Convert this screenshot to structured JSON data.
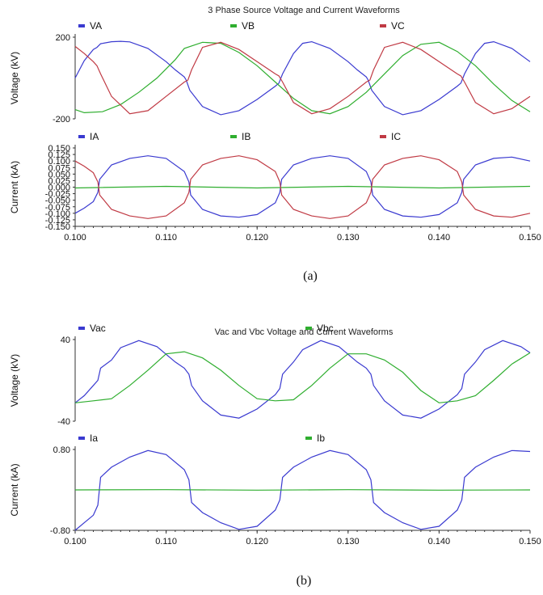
{
  "captions": [
    "(a)",
    "(b)"
  ],
  "colors": {
    "blue": "#3a3ad0",
    "green": "#2fae2f",
    "red": "#c03a44"
  },
  "chart_data": [
    {
      "type": "line",
      "title": "3 Phase Source Voltage and Current Waveforms",
      "ylabel": "Voltage (kV)",
      "ylim": [
        -200,
        200
      ],
      "yticks": [
        "200",
        "-200"
      ],
      "xlim": [
        0.1,
        0.15
      ],
      "legend": [
        "VA",
        "VB",
        "VC"
      ],
      "series": [
        {
          "name": "VA",
          "color": "blue",
          "x": [
            0.1,
            0.101,
            0.102,
            0.1024,
            0.1028,
            0.104,
            0.105,
            0.106,
            0.108,
            0.11,
            0.111,
            0.112,
            0.1122,
            0.1126,
            0.114,
            0.116,
            0.118,
            0.12,
            0.122,
            0.1224,
            0.1228,
            0.124,
            0.125,
            0.126,
            0.128,
            0.13,
            0.131,
            0.132,
            0.1322,
            0.1326,
            0.134,
            0.136,
            0.138,
            0.14,
            0.142,
            0.1424,
            0.1428,
            0.144,
            0.145,
            0.146,
            0.148,
            0.15
          ],
          "y": [
            0,
            85,
            140,
            150,
            168,
            178,
            180,
            177,
            145,
            80,
            40,
            5,
            -10,
            -60,
            -140,
            -180,
            -160,
            -105,
            -40,
            -25,
            20,
            120,
            170,
            178,
            145,
            80,
            40,
            5,
            -10,
            -60,
            -140,
            -180,
            -160,
            -105,
            -40,
            -25,
            20,
            120,
            170,
            178,
            145,
            80
          ]
        },
        {
          "name": "VB",
          "color": "green",
          "x": [
            0.1,
            0.101,
            0.103,
            0.105,
            0.107,
            0.109,
            0.111,
            0.112,
            0.114,
            0.116,
            0.118,
            0.12,
            0.122,
            0.124,
            0.126,
            0.128,
            0.13,
            0.132,
            0.134,
            0.136,
            0.138,
            0.14,
            0.142,
            0.144,
            0.146,
            0.148,
            0.15
          ],
          "y": [
            -155,
            -170,
            -165,
            -130,
            -70,
            0,
            90,
            145,
            175,
            170,
            125,
            60,
            -20,
            -100,
            -160,
            -175,
            -140,
            -70,
            20,
            110,
            165,
            175,
            130,
            60,
            -30,
            -110,
            -165
          ]
        },
        {
          "name": "VC",
          "color": "red",
          "x": [
            0.1,
            0.101,
            0.102,
            0.1024,
            0.1028,
            0.104,
            0.106,
            0.108,
            0.11,
            0.112,
            0.1124,
            0.1128,
            0.114,
            0.116,
            0.118,
            0.12,
            0.122,
            0.1224,
            0.1228,
            0.124,
            0.126,
            0.128,
            0.13,
            0.132,
            0.1324,
            0.1328,
            0.134,
            0.136,
            0.138,
            0.14,
            0.142,
            0.1424,
            0.1428,
            0.144,
            0.146,
            0.148,
            0.15
          ],
          "y": [
            155,
            120,
            80,
            60,
            20,
            -90,
            -175,
            -160,
            -90,
            -20,
            -10,
            40,
            150,
            175,
            140,
            80,
            20,
            10,
            -20,
            -120,
            -175,
            -150,
            -90,
            -20,
            -10,
            40,
            150,
            175,
            140,
            80,
            20,
            10,
            -20,
            -120,
            -175,
            -150,
            -90
          ]
        }
      ]
    },
    {
      "type": "line",
      "title": "",
      "ylabel": "Current (kA)",
      "ylim": [
        -0.15,
        0.15
      ],
      "yticks": [
        "0.150",
        "0.125",
        "0.100",
        "0.075",
        "0.050",
        "0.025",
        "0.000",
        "-0.025",
        "-0.050",
        "-0.075",
        "-0.100",
        "-0.125",
        "-0.150"
      ],
      "xlim": [
        0.1,
        0.15
      ],
      "xticks": [
        "0.100",
        "0.110",
        "0.120",
        "0.130",
        "0.140",
        "0.150"
      ],
      "legend": [
        "IA",
        "IB",
        "IC"
      ],
      "series": [
        {
          "name": "IA",
          "color": "blue",
          "x": [
            0.1,
            0.101,
            0.102,
            0.1025,
            0.1027,
            0.104,
            0.106,
            0.108,
            0.11,
            0.112,
            0.1125,
            0.1127,
            0.114,
            0.116,
            0.118,
            0.12,
            0.122,
            0.1225,
            0.1227,
            0.124,
            0.126,
            0.128,
            0.13,
            0.132,
            0.1325,
            0.1327,
            0.134,
            0.136,
            0.138,
            0.14,
            0.142,
            0.1425,
            0.1427,
            0.144,
            0.146,
            0.148,
            0.15
          ],
          "y": [
            -0.1,
            -0.08,
            -0.055,
            -0.02,
            0.03,
            0.085,
            0.11,
            0.12,
            0.11,
            0.06,
            0.02,
            -0.03,
            -0.085,
            -0.11,
            -0.115,
            -0.105,
            -0.06,
            -0.02,
            0.03,
            0.085,
            0.11,
            0.12,
            0.11,
            0.06,
            0.02,
            -0.03,
            -0.085,
            -0.11,
            -0.115,
            -0.105,
            -0.06,
            -0.02,
            0.03,
            0.085,
            0.11,
            0.115,
            0.1
          ]
        },
        {
          "name": "IB",
          "color": "green",
          "x": [
            0.1,
            0.11,
            0.12,
            0.13,
            0.14,
            0.15
          ],
          "y": [
            -0.003,
            0.003,
            -0.003,
            0.003,
            -0.003,
            0.003
          ]
        },
        {
          "name": "IC",
          "color": "red",
          "x": [
            0.1,
            0.101,
            0.102,
            0.1025,
            0.1027,
            0.104,
            0.106,
            0.108,
            0.11,
            0.112,
            0.1125,
            0.1127,
            0.114,
            0.116,
            0.118,
            0.12,
            0.122,
            0.1225,
            0.1227,
            0.124,
            0.126,
            0.128,
            0.13,
            0.132,
            0.1325,
            0.1327,
            0.134,
            0.136,
            0.138,
            0.14,
            0.142,
            0.1425,
            0.1427,
            0.144,
            0.146,
            0.148,
            0.15
          ],
          "y": [
            0.1,
            0.08,
            0.055,
            0.02,
            -0.03,
            -0.085,
            -0.11,
            -0.12,
            -0.11,
            -0.06,
            -0.02,
            0.03,
            0.085,
            0.11,
            0.12,
            0.105,
            0.06,
            0.02,
            -0.03,
            -0.085,
            -0.11,
            -0.12,
            -0.11,
            -0.06,
            -0.02,
            0.03,
            0.085,
            0.11,
            0.12,
            0.105,
            0.06,
            0.02,
            -0.03,
            -0.085,
            -0.11,
            -0.115,
            -0.1
          ]
        }
      ]
    },
    {
      "type": "line",
      "title": "Vac and Vbc Voltage and Current Waveforms",
      "ylabel": "Voltage (kV)",
      "ylim": [
        -40,
        40
      ],
      "yticks": [
        "40",
        "-40"
      ],
      "xlim": [
        0.1,
        0.15
      ],
      "legend": [
        "Vac",
        "Vbc"
      ],
      "series": [
        {
          "name": "Vac",
          "color": "blue",
          "x": [
            0.1,
            0.101,
            0.102,
            0.1025,
            0.1028,
            0.104,
            0.105,
            0.107,
            0.109,
            0.111,
            0.112,
            0.1125,
            0.1128,
            0.114,
            0.116,
            0.118,
            0.12,
            0.122,
            0.1225,
            0.1228,
            0.124,
            0.125,
            0.127,
            0.129,
            0.131,
            0.132,
            0.1325,
            0.1328,
            0.134,
            0.136,
            0.138,
            0.14,
            0.142,
            0.1425,
            0.1428,
            0.144,
            0.145,
            0.147,
            0.149,
            0.15
          ],
          "y": [
            -22,
            -15,
            -5,
            0,
            12,
            20,
            32,
            39,
            33,
            18,
            12,
            6,
            -5,
            -20,
            -34,
            -37,
            -28,
            -14,
            -8,
            6,
            18,
            30,
            39,
            33,
            18,
            12,
            6,
            -5,
            -20,
            -34,
            -37,
            -28,
            -14,
            -8,
            6,
            18,
            30,
            39,
            33,
            27
          ]
        },
        {
          "name": "Vbc",
          "color": "green",
          "x": [
            0.1,
            0.102,
            0.104,
            0.106,
            0.108,
            0.11,
            0.112,
            0.114,
            0.116,
            0.118,
            0.12,
            0.122,
            0.124,
            0.126,
            0.128,
            0.13,
            0.132,
            0.134,
            0.136,
            0.138,
            0.14,
            0.142,
            0.144,
            0.146,
            0.148,
            0.15
          ],
          "y": [
            -22,
            -20,
            -18,
            -5,
            10,
            26,
            28,
            22,
            10,
            -5,
            -18,
            -20,
            -19,
            -5,
            12,
            26,
            26,
            20,
            8,
            -10,
            -22,
            -20,
            -15,
            0,
            16,
            27
          ]
        }
      ]
    },
    {
      "type": "line",
      "title": "",
      "ylabel": "Current (kA)",
      "ylim": [
        -0.8,
        0.8
      ],
      "yticks": [
        "0.80",
        "-0.80"
      ],
      "xlim": [
        0.1,
        0.15
      ],
      "xticks": [
        "0.100",
        "0.110",
        "0.120",
        "0.130",
        "0.140",
        "0.150"
      ],
      "legend": [
        "Ia",
        "Ib"
      ],
      "series": [
        {
          "name": "Ia",
          "color": "blue",
          "x": [
            0.1,
            0.101,
            0.102,
            0.1025,
            0.1028,
            0.104,
            0.106,
            0.108,
            0.11,
            0.112,
            0.1125,
            0.1128,
            0.114,
            0.116,
            0.118,
            0.12,
            0.122,
            0.1225,
            0.1228,
            0.124,
            0.126,
            0.128,
            0.13,
            0.132,
            0.1325,
            0.1328,
            0.134,
            0.136,
            0.138,
            0.14,
            0.142,
            0.1425,
            0.1428,
            0.144,
            0.146,
            0.148,
            0.15
          ],
          "y": [
            -0.8,
            -0.65,
            -0.5,
            -0.3,
            0.25,
            0.45,
            0.65,
            0.78,
            0.7,
            0.4,
            0.2,
            -0.25,
            -0.45,
            -0.65,
            -0.78,
            -0.72,
            -0.4,
            -0.2,
            0.25,
            0.45,
            0.65,
            0.78,
            0.7,
            0.4,
            0.2,
            -0.25,
            -0.45,
            -0.65,
            -0.78,
            -0.72,
            -0.4,
            -0.2,
            0.25,
            0.45,
            0.65,
            0.78,
            0.76
          ]
        },
        {
          "name": "Ib",
          "color": "green",
          "x": [
            0.1,
            0.11,
            0.12,
            0.13,
            0.14,
            0.15
          ],
          "y": [
            0.0,
            0.005,
            -0.005,
            0.005,
            -0.005,
            0.0
          ]
        }
      ]
    }
  ]
}
